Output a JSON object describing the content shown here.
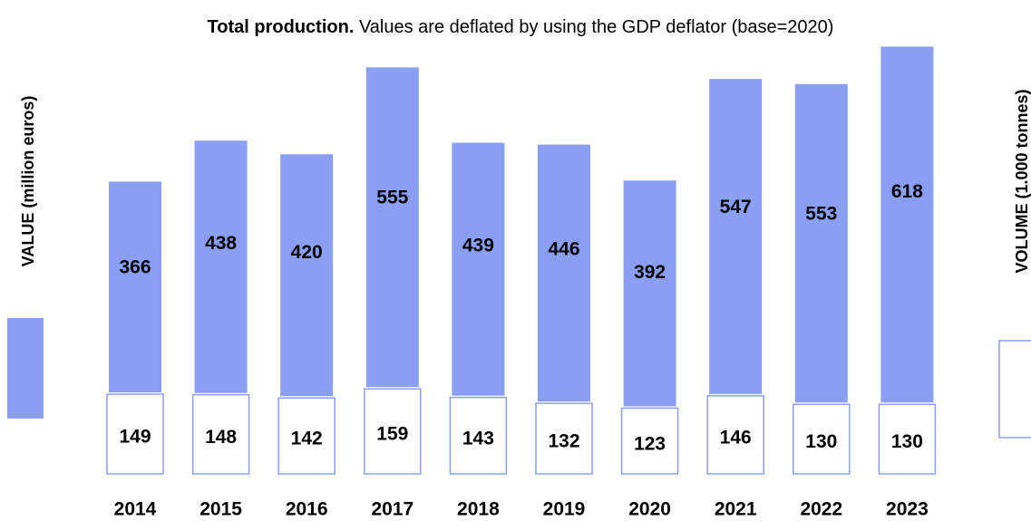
{
  "chart_data": {
    "type": "bar",
    "title_bold": "Total production.",
    "title": "Values are deflated by using the GDP deflator (base=2020)",
    "ylabel": "VALUE (million euros)",
    "y2label": "VOLUME (1.000 tonnes)",
    "categories": [
      "2014",
      "2015",
      "2016",
      "2017",
      "2018",
      "2019",
      "2020",
      "2021",
      "2022",
      "2023"
    ],
    "series": [
      {
        "name": "VALUE (million euros)",
        "color": "#8a9ff2",
        "values": [
          366,
          438,
          420,
          555,
          439,
          446,
          392,
          547,
          553,
          618
        ]
      },
      {
        "name": "VOLUME (1.000 tonnes)",
        "color": "#8a9ff2",
        "axis": "y2",
        "values": [
          149,
          148,
          142,
          159,
          143,
          132,
          123,
          146,
          130,
          130
        ]
      }
    ],
    "ylim": [
      0,
      700
    ],
    "y2lim": [
      0,
      200
    ]
  }
}
